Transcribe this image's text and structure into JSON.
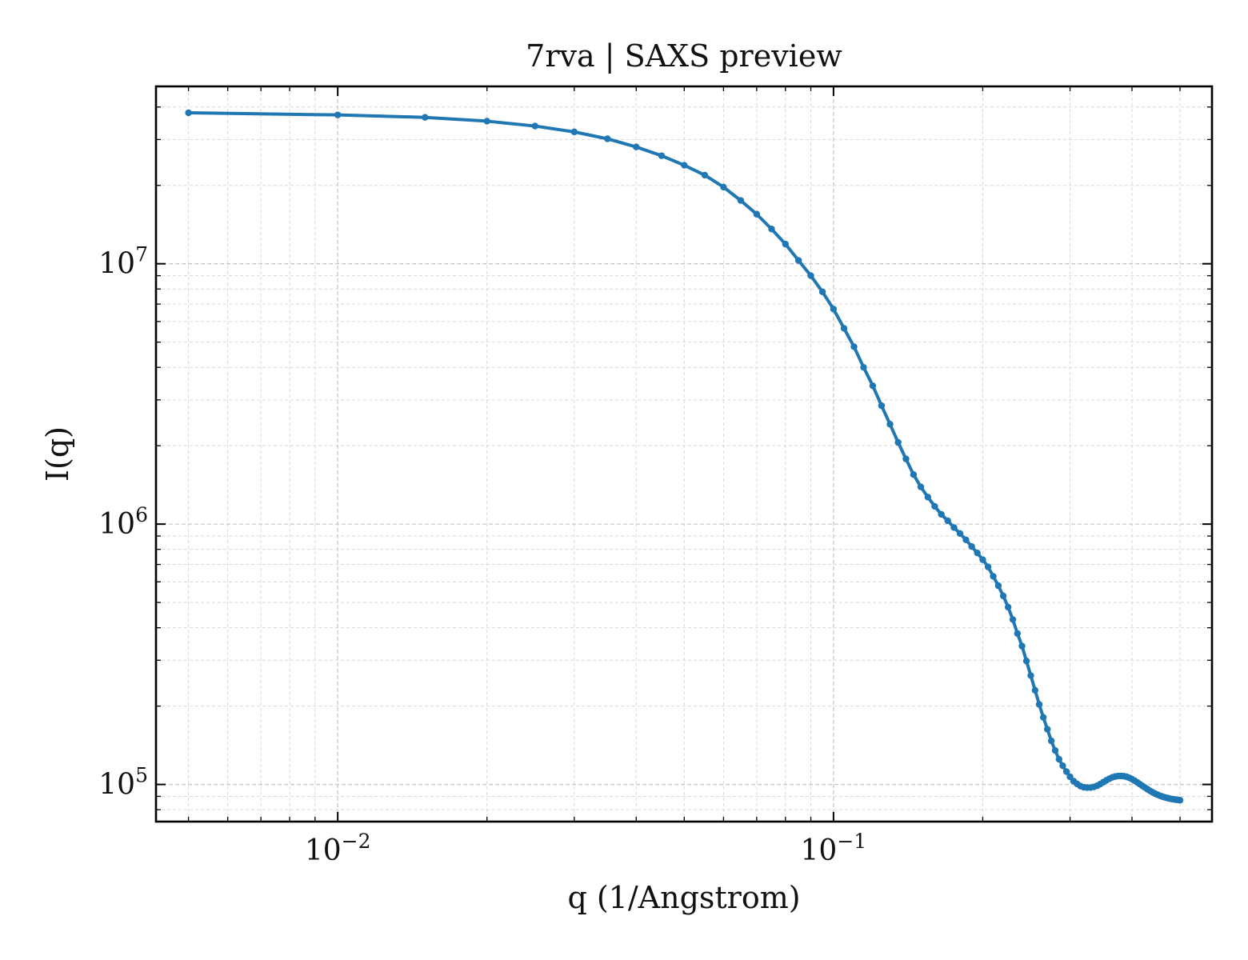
{
  "chart_data": {
    "type": "line",
    "title": "7rva | SAXS preview",
    "xlabel": "q (1/Angstrom)",
    "ylabel": "I(q)",
    "xscale": "log",
    "yscale": "log",
    "xlim": [
      0.0043,
      0.58
    ],
    "ylim": [
      72000,
      48000000
    ],
    "grid": true,
    "legend": "none",
    "series_color": "#1f77b4",
    "x_ticks": [
      {
        "base": "10",
        "exp": "−2",
        "value": 0.01
      },
      {
        "base": "10",
        "exp": "−1",
        "value": 0.1
      }
    ],
    "y_ticks": [
      {
        "base": "10",
        "exp": "5",
        "value": 100000
      },
      {
        "base": "10",
        "exp": "6",
        "value": 1000000
      },
      {
        "base": "10",
        "exp": "7",
        "value": 10000000
      }
    ],
    "series": [
      {
        "x": [
          0.005,
          0.01,
          0.015,
          0.02,
          0.025,
          0.03,
          0.035,
          0.04,
          0.045,
          0.05,
          0.055,
          0.06,
          0.065,
          0.07,
          0.075,
          0.08,
          0.085,
          0.09,
          0.095,
          0.1,
          0.105,
          0.11,
          0.115,
          0.12,
          0.125,
          0.13,
          0.135,
          0.14,
          0.145,
          0.15,
          0.155,
          0.16,
          0.165,
          0.17,
          0.175,
          0.18,
          0.185,
          0.19,
          0.195,
          0.2,
          0.205,
          0.21,
          0.215,
          0.22,
          0.225,
          0.23,
          0.235,
          0.24,
          0.245,
          0.25,
          0.255,
          0.26,
          0.265,
          0.27,
          0.275,
          0.28,
          0.285,
          0.29,
          0.295,
          0.3,
          0.305,
          0.31,
          0.315,
          0.32,
          0.325,
          0.33,
          0.335,
          0.34,
          0.345,
          0.35,
          0.355,
          0.36,
          0.365,
          0.37,
          0.375,
          0.38,
          0.385,
          0.39,
          0.395,
          0.4,
          0.405,
          0.41,
          0.415,
          0.42,
          0.425,
          0.43,
          0.435,
          0.44,
          0.445,
          0.45,
          0.455,
          0.46,
          0.465,
          0.47,
          0.475,
          0.48,
          0.485,
          0.49,
          0.495,
          0.5
        ],
        "y": [
          38000000,
          37300000,
          36500000,
          35300000,
          33800000,
          32100000,
          30200000,
          28100000,
          26000000,
          23900000,
          21900000,
          19700000,
          17500000,
          15500000,
          13600000,
          11900000,
          10300000,
          9000000,
          7800000,
          6700000,
          5650000,
          4800000,
          4000000,
          3400000,
          2850000,
          2420000,
          2060000,
          1780000,
          1550000,
          1390000,
          1270000,
          1170000,
          1090000,
          1030000,
          970000,
          920000,
          870000,
          820000,
          775000,
          730000,
          685000,
          630000,
          580000,
          530000,
          480000,
          430000,
          380000,
          340000,
          298000,
          262000,
          230000,
          203000,
          181000,
          163000,
          147000,
          135000,
          125000,
          118000,
          112000,
          107000,
          103000,
          100500,
          98500,
          97500,
          97200,
          97300,
          97800,
          98800,
          100300,
          102000,
          103700,
          105200,
          106500,
          107300,
          107700,
          107800,
          107600,
          107000,
          106000,
          104800,
          103400,
          101800,
          100200,
          98700,
          97200,
          95800,
          94500,
          93300,
          92300,
          91400,
          90600,
          89900,
          89300,
          88800,
          88400,
          88000,
          87700,
          87400,
          87200,
          87000
        ]
      }
    ]
  }
}
